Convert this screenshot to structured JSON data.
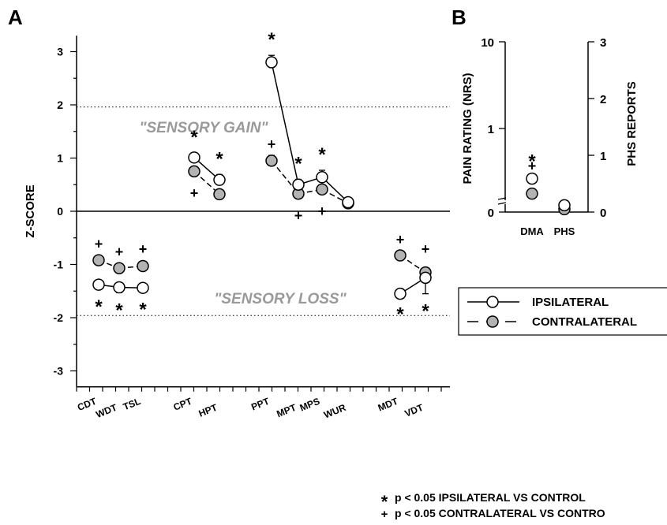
{
  "chart_data": [
    {
      "panel": "A",
      "type": "line",
      "ylabel": "Z-SCORE",
      "ylim": [
        -3.3,
        3.3
      ],
      "yticks": [
        "3",
        "2",
        "1",
        "0",
        "-1",
        "-2",
        "-3"
      ],
      "ytick_values": [
        3,
        2,
        1,
        0,
        -1,
        -2,
        -3
      ],
      "categories": [
        "CDT",
        "WDT",
        "TSL",
        "CPT",
        "HPT",
        "PPT",
        "MPT",
        "MPS",
        "WUR",
        "MDT",
        "VDT"
      ],
      "reference_lines": [
        1.96,
        -1.96
      ],
      "region_labels": {
        "gain": "\"SENSORY GAIN\"",
        "loss": "\"SENSORY LOSS\""
      },
      "series": [
        {
          "name": "IPSILATERAL",
          "fill": "#ffffff",
          "values": [
            -1.38,
            -1.43,
            -1.44,
            1.01,
            0.59,
            2.8,
            0.5,
            0.64,
            0.17,
            -1.55,
            -1.25
          ],
          "errors": [
            0.09,
            0.1,
            0.08,
            0.09,
            0.1,
            0.13,
            0.1,
            0.13,
            0.06,
            0.06,
            0.3
          ],
          "significance": [
            "*",
            "*",
            "*",
            "*",
            "*",
            "*",
            "*",
            "*",
            "",
            "*",
            "*"
          ]
        },
        {
          "name": "CONTRALATERAL",
          "fill": "#b3b3b3",
          "values": [
            -0.92,
            -1.07,
            -1.03,
            0.75,
            0.32,
            0.95,
            0.33,
            0.41,
            0.15,
            -0.83,
            -1.15
          ],
          "errors": [
            0.07,
            0.07,
            0.08,
            0.09,
            0.05,
            0.1,
            0.08,
            0.08,
            0.06,
            0.06,
            0.08
          ],
          "significance": [
            "+",
            "+",
            "+",
            "+",
            "",
            "+",
            "+",
            "+",
            "",
            "+",
            "+"
          ]
        }
      ]
    },
    {
      "panel": "B",
      "type": "scatter",
      "categories": [
        "DMA",
        "PHS"
      ],
      "ylabel_left": "PAIN RATING (NRS)",
      "yticks_left": [
        "10",
        "1",
        "0"
      ],
      "ylabel_right": "PHS REPORTS",
      "yticks_right": [
        "3",
        "2",
        "1",
        "0"
      ],
      "series": [
        {
          "name": "IPSILATERAL",
          "fill": "#ffffff",
          "values": [
            0.4,
            0.12
          ]
        },
        {
          "name": "CONTRALATERAL",
          "fill": "#b3b3b3",
          "values": [
            0.22,
            0.05
          ]
        }
      ],
      "significance": {
        "DMA": [
          "*",
          "+"
        ]
      }
    }
  ],
  "legend": [
    {
      "label": "IPSILATERAL",
      "fill": "#ffffff",
      "style": "solid"
    },
    {
      "label": "CONTRALATERAL",
      "fill": "#b3b3b3",
      "style": "dashed"
    }
  ],
  "footnotes": [
    {
      "symbol": "*",
      "text": "p < 0.05 IPSILATERAL VS CONTROL"
    },
    {
      "symbol": "+",
      "text": "p < 0.05 CONTRALATERAL VS CONTRO"
    }
  ]
}
